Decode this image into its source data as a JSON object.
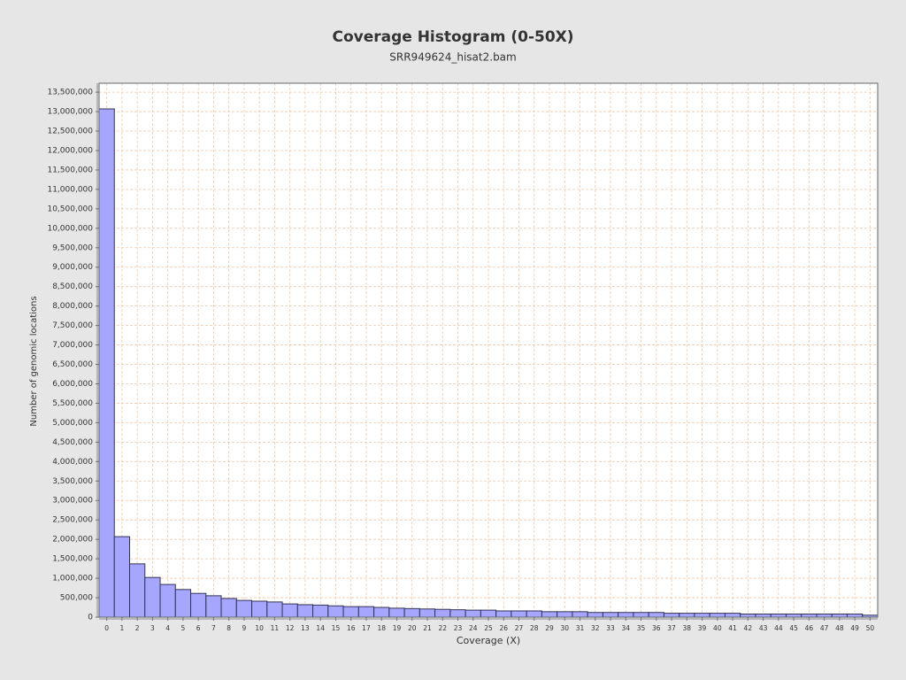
{
  "chart_data": {
    "type": "bar",
    "title": "Coverage Histogram (0-50X)",
    "subtitle": "SRR949624_hisat2.bam",
    "xlabel": "Coverage (X)",
    "ylabel": "Number of genomic locations",
    "categories": [
      "0",
      "1",
      "2",
      "3",
      "4",
      "5",
      "6",
      "7",
      "8",
      "9",
      "10",
      "11",
      "12",
      "13",
      "14",
      "15",
      "16",
      "17",
      "18",
      "19",
      "20",
      "21",
      "22",
      "23",
      "24",
      "25",
      "26",
      "27",
      "28",
      "29",
      "30",
      "31",
      "32",
      "33",
      "34",
      "35",
      "36",
      "37",
      "38",
      "39",
      "40",
      "41",
      "42",
      "43",
      "44",
      "45",
      "46",
      "47",
      "48",
      "49",
      "50"
    ],
    "values": [
      13070000,
      2070000,
      1370000,
      1020000,
      840000,
      710000,
      610000,
      550000,
      480000,
      430000,
      410000,
      390000,
      340000,
      320000,
      310000,
      290000,
      270000,
      270000,
      250000,
      230000,
      220000,
      210000,
      200000,
      190000,
      180000,
      180000,
      160000,
      160000,
      160000,
      140000,
      140000,
      140000,
      120000,
      120000,
      120000,
      120000,
      120000,
      100000,
      100000,
      100000,
      100000,
      100000,
      80000,
      80000,
      80000,
      80000,
      80000,
      80000,
      80000,
      80000,
      50000
    ],
    "color": "#a6a6ff",
    "edgecolor": "#333355",
    "gridcolor": "#f0c8a8",
    "grid": true,
    "ylim": [
      0,
      13730000
    ],
    "yticks": [
      {
        "value": 0,
        "label": "0"
      },
      {
        "value": 500000,
        "label": "500,000"
      },
      {
        "value": 1000000,
        "label": "1,000,000"
      },
      {
        "value": 1500000,
        "label": "1,500,000"
      },
      {
        "value": 2000000,
        "label": "2,000,000"
      },
      {
        "value": 2500000,
        "label": "2,500,000"
      },
      {
        "value": 3000000,
        "label": "3,000,000"
      },
      {
        "value": 3500000,
        "label": "3,500,000"
      },
      {
        "value": 4000000,
        "label": "4,000,000"
      },
      {
        "value": 4500000,
        "label": "4,500,000"
      },
      {
        "value": 5000000,
        "label": "5,000,000"
      },
      {
        "value": 5500000,
        "label": "5,500,000"
      },
      {
        "value": 6000000,
        "label": "6,000,000"
      },
      {
        "value": 6500000,
        "label": "6,500,000"
      },
      {
        "value": 7000000,
        "label": "7,000,000"
      },
      {
        "value": 7500000,
        "label": "7,500,000"
      },
      {
        "value": 8000000,
        "label": "8,000,000"
      },
      {
        "value": 8500000,
        "label": "8,500,000"
      },
      {
        "value": 9000000,
        "label": "9,000,000"
      },
      {
        "value": 9500000,
        "label": "9,500,000"
      },
      {
        "value": 10000000,
        "label": "10,000,000"
      },
      {
        "value": 10500000,
        "label": "10,500,000"
      },
      {
        "value": 11000000,
        "label": "11,000,000"
      },
      {
        "value": 11500000,
        "label": "11,500,000"
      },
      {
        "value": 12000000,
        "label": "12,000,000"
      },
      {
        "value": 12500000,
        "label": "12,500,000"
      },
      {
        "value": 13000000,
        "label": "13,000,000"
      },
      {
        "value": 13500000,
        "label": "13,500,000"
      }
    ]
  }
}
